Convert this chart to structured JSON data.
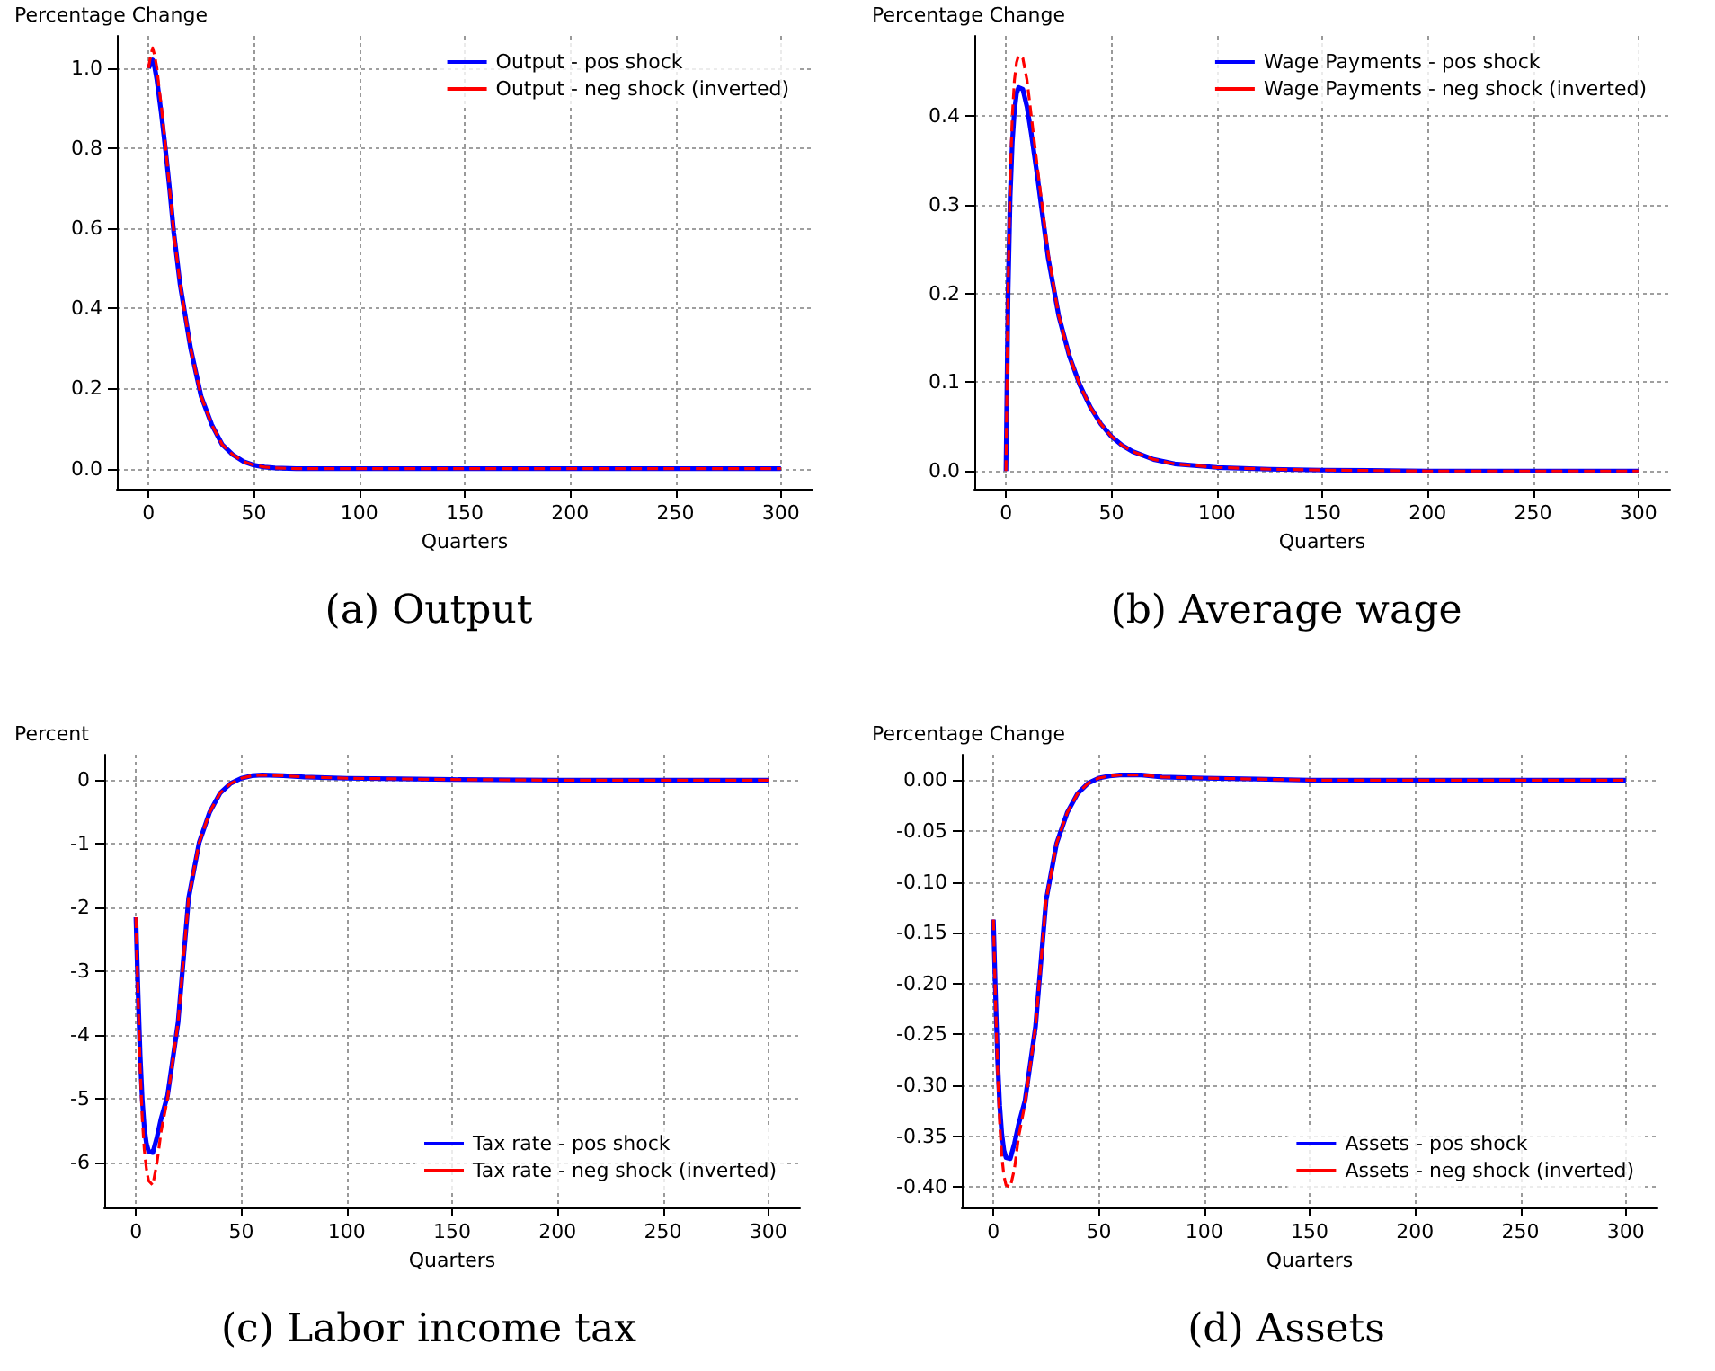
{
  "chart_data": [
    {
      "type": "line",
      "title": "(a) Output",
      "xlabel": "Quarters",
      "ylabel": "Percentage Change",
      "x": [
        0,
        1,
        2,
        3,
        4,
        5,
        6,
        8,
        10,
        12,
        15,
        20,
        25,
        30,
        35,
        40,
        45,
        50,
        55,
        60,
        70,
        80,
        100,
        125,
        150,
        200,
        250,
        300
      ],
      "xlim": [
        -15,
        315
      ],
      "xticks": [
        0,
        50,
        100,
        150,
        200,
        250,
        300
      ],
      "ylim": [
        -0.05,
        1.08
      ],
      "yticks": [
        {
          "value": 0,
          "label": "0.0"
        },
        {
          "value": 0.2,
          "label": "0.2"
        },
        {
          "value": 0.4,
          "label": "0.4"
        },
        {
          "value": 0.6,
          "label": "0.6"
        },
        {
          "value": 0.8,
          "label": "0.8"
        },
        {
          "value": 1,
          "label": "1.0"
        }
      ],
      "grid": true,
      "legend": "top right",
      "marker": "none",
      "series": [
        {
          "name": "Output - pos shock",
          "color": "#0000ff",
          "line_style": "solid",
          "values": [
            1.0,
            1.01,
            1.02,
            1.0,
            0.97,
            0.93,
            0.89,
            0.8,
            0.7,
            0.59,
            0.46,
            0.3,
            0.18,
            0.11,
            0.06,
            0.035,
            0.018,
            0.009,
            0.004,
            0.002,
            0,
            0,
            0,
            0,
            0,
            0,
            0,
            0
          ]
        },
        {
          "name": "Output - neg shock (inverted)",
          "color": "#ff0000",
          "line_style": "dashed",
          "values": [
            1.0,
            1.03,
            1.05,
            1.03,
            1.0,
            0.95,
            0.91,
            0.81,
            0.7,
            0.59,
            0.46,
            0.3,
            0.18,
            0.11,
            0.06,
            0.035,
            0.018,
            0.009,
            0.004,
            0.002,
            0,
            0,
            0,
            0,
            0,
            0,
            0,
            0
          ]
        }
      ]
    },
    {
      "type": "line",
      "title": "(b) Average wage",
      "xlabel": "Quarters",
      "ylabel": "Percentage Change",
      "x": [
        0,
        1,
        2,
        3,
        4,
        5,
        6,
        8,
        10,
        12,
        15,
        20,
        25,
        30,
        35,
        40,
        45,
        50,
        55,
        60,
        70,
        80,
        100,
        125,
        150,
        200,
        250,
        300
      ],
      "xlim": [
        -15,
        315
      ],
      "xticks": [
        0,
        50,
        100,
        150,
        200,
        250,
        300
      ],
      "ylim": [
        -0.02,
        0.49
      ],
      "yticks": [
        {
          "value": 0,
          "label": "0.0"
        },
        {
          "value": 0.1,
          "label": "0.1"
        },
        {
          "value": 0.2,
          "label": "0.2"
        },
        {
          "value": 0.3,
          "label": "0.3"
        },
        {
          "value": 0.4,
          "label": "0.4"
        }
      ],
      "grid": true,
      "legend": "top right",
      "marker": "none",
      "series": [
        {
          "name": "Wage Payments - pos shock",
          "color": "#0000ff",
          "line_style": "solid",
          "values": [
            0,
            0.2,
            0.31,
            0.37,
            0.405,
            0.425,
            0.432,
            0.43,
            0.41,
            0.38,
            0.33,
            0.24,
            0.175,
            0.13,
            0.097,
            0.072,
            0.053,
            0.039,
            0.029,
            0.022,
            0.013,
            0.008,
            0.004,
            0.002,
            0.001,
            0,
            0,
            0
          ]
        },
        {
          "name": "Wage Payments - neg shock (inverted)",
          "color": "#ff0000",
          "line_style": "dashed",
          "values": [
            0,
            0.21,
            0.33,
            0.4,
            0.44,
            0.46,
            0.468,
            0.465,
            0.44,
            0.4,
            0.34,
            0.245,
            0.175,
            0.13,
            0.097,
            0.072,
            0.053,
            0.039,
            0.029,
            0.022,
            0.013,
            0.008,
            0.004,
            0.002,
            0.001,
            0,
            0,
            0
          ]
        }
      ]
    },
    {
      "type": "line",
      "title": "(c) Labor income tax",
      "xlabel": "Quarters",
      "ylabel": "Percent",
      "x": [
        0,
        1,
        2,
        3,
        4,
        5,
        6,
        8,
        10,
        12,
        15,
        20,
        25,
        30,
        35,
        40,
        45,
        50,
        55,
        60,
        70,
        80,
        100,
        125,
        150,
        200,
        250,
        300
      ],
      "xlim": [
        -15,
        315
      ],
      "xticks": [
        0,
        50,
        100,
        150,
        200,
        250,
        300
      ],
      "ylim": [
        -6.7,
        0.4
      ],
      "yticks": [
        -6,
        -5,
        -4,
        -3,
        -2,
        -1,
        0
      ],
      "grid": true,
      "legend": "bottom right",
      "marker": "none",
      "series": [
        {
          "name": "Tax rate - pos shock",
          "color": "#0000ff",
          "line_style": "solid",
          "values": [
            -2.15,
            -3.3,
            -4.3,
            -5.0,
            -5.45,
            -5.7,
            -5.82,
            -5.84,
            -5.6,
            -5.3,
            -4.95,
            -3.8,
            -1.85,
            -0.98,
            -0.5,
            -0.2,
            -0.05,
            0.03,
            0.07,
            0.08,
            0.07,
            0.05,
            0.03,
            0.02,
            0.01,
            0,
            0,
            0
          ]
        },
        {
          "name": "Tax rate - neg shock (inverted)",
          "color": "#ff0000",
          "line_style": "dashed",
          "values": [
            -2.15,
            -3.4,
            -4.5,
            -5.3,
            -5.8,
            -6.1,
            -6.28,
            -6.35,
            -6.0,
            -5.5,
            -5.0,
            -3.8,
            -1.85,
            -0.98,
            -0.5,
            -0.2,
            -0.05,
            0.03,
            0.07,
            0.08,
            0.07,
            0.05,
            0.03,
            0.02,
            0.01,
            0,
            0,
            0
          ]
        }
      ]
    },
    {
      "type": "line",
      "title": "(d) Assets",
      "xlabel": "Quarters",
      "ylabel": "Percentage Change",
      "x": [
        0,
        1,
        2,
        3,
        4,
        5,
        6,
        8,
        10,
        12,
        15,
        20,
        25,
        30,
        35,
        40,
        45,
        50,
        55,
        60,
        70,
        80,
        100,
        125,
        150,
        200,
        250,
        300
      ],
      "xlim": [
        -15,
        315
      ],
      "xticks": [
        0,
        50,
        100,
        150,
        200,
        250,
        300
      ],
      "ylim": [
        -0.42,
        0.025
      ],
      "yticks": [
        {
          "value": -0.4,
          "label": "-0.40"
        },
        {
          "value": -0.35,
          "label": "-0.35"
        },
        {
          "value": -0.3,
          "label": "-0.30"
        },
        {
          "value": -0.25,
          "label": "-0.25"
        },
        {
          "value": -0.2,
          "label": "-0.20"
        },
        {
          "value": -0.15,
          "label": "-0.15"
        },
        {
          "value": -0.1,
          "label": "-0.10"
        },
        {
          "value": -0.05,
          "label": "-0.05"
        },
        {
          "value": 0,
          "label": "0.00"
        }
      ],
      "grid": true,
      "legend": "bottom right",
      "marker": "none",
      "series": [
        {
          "name": "Assets - pos shock",
          "color": "#0000ff",
          "line_style": "solid",
          "values": [
            -0.137,
            -0.21,
            -0.275,
            -0.32,
            -0.348,
            -0.364,
            -0.371,
            -0.372,
            -0.357,
            -0.338,
            -0.315,
            -0.242,
            -0.118,
            -0.062,
            -0.032,
            -0.013,
            -0.003,
            0.002,
            0.004,
            0.005,
            0.005,
            0.003,
            0.002,
            0.001,
            0,
            0,
            0,
            0
          ]
        },
        {
          "name": "Assets - neg shock (inverted)",
          "color": "#ff0000",
          "line_style": "dashed",
          "values": [
            -0.137,
            -0.217,
            -0.287,
            -0.338,
            -0.37,
            -0.389,
            -0.398,
            -0.4,
            -0.382,
            -0.35,
            -0.318,
            -0.242,
            -0.118,
            -0.062,
            -0.032,
            -0.013,
            -0.003,
            0.002,
            0.004,
            0.005,
            0.005,
            0.003,
            0.002,
            0.001,
            0,
            0,
            0,
            0
          ]
        }
      ]
    }
  ]
}
